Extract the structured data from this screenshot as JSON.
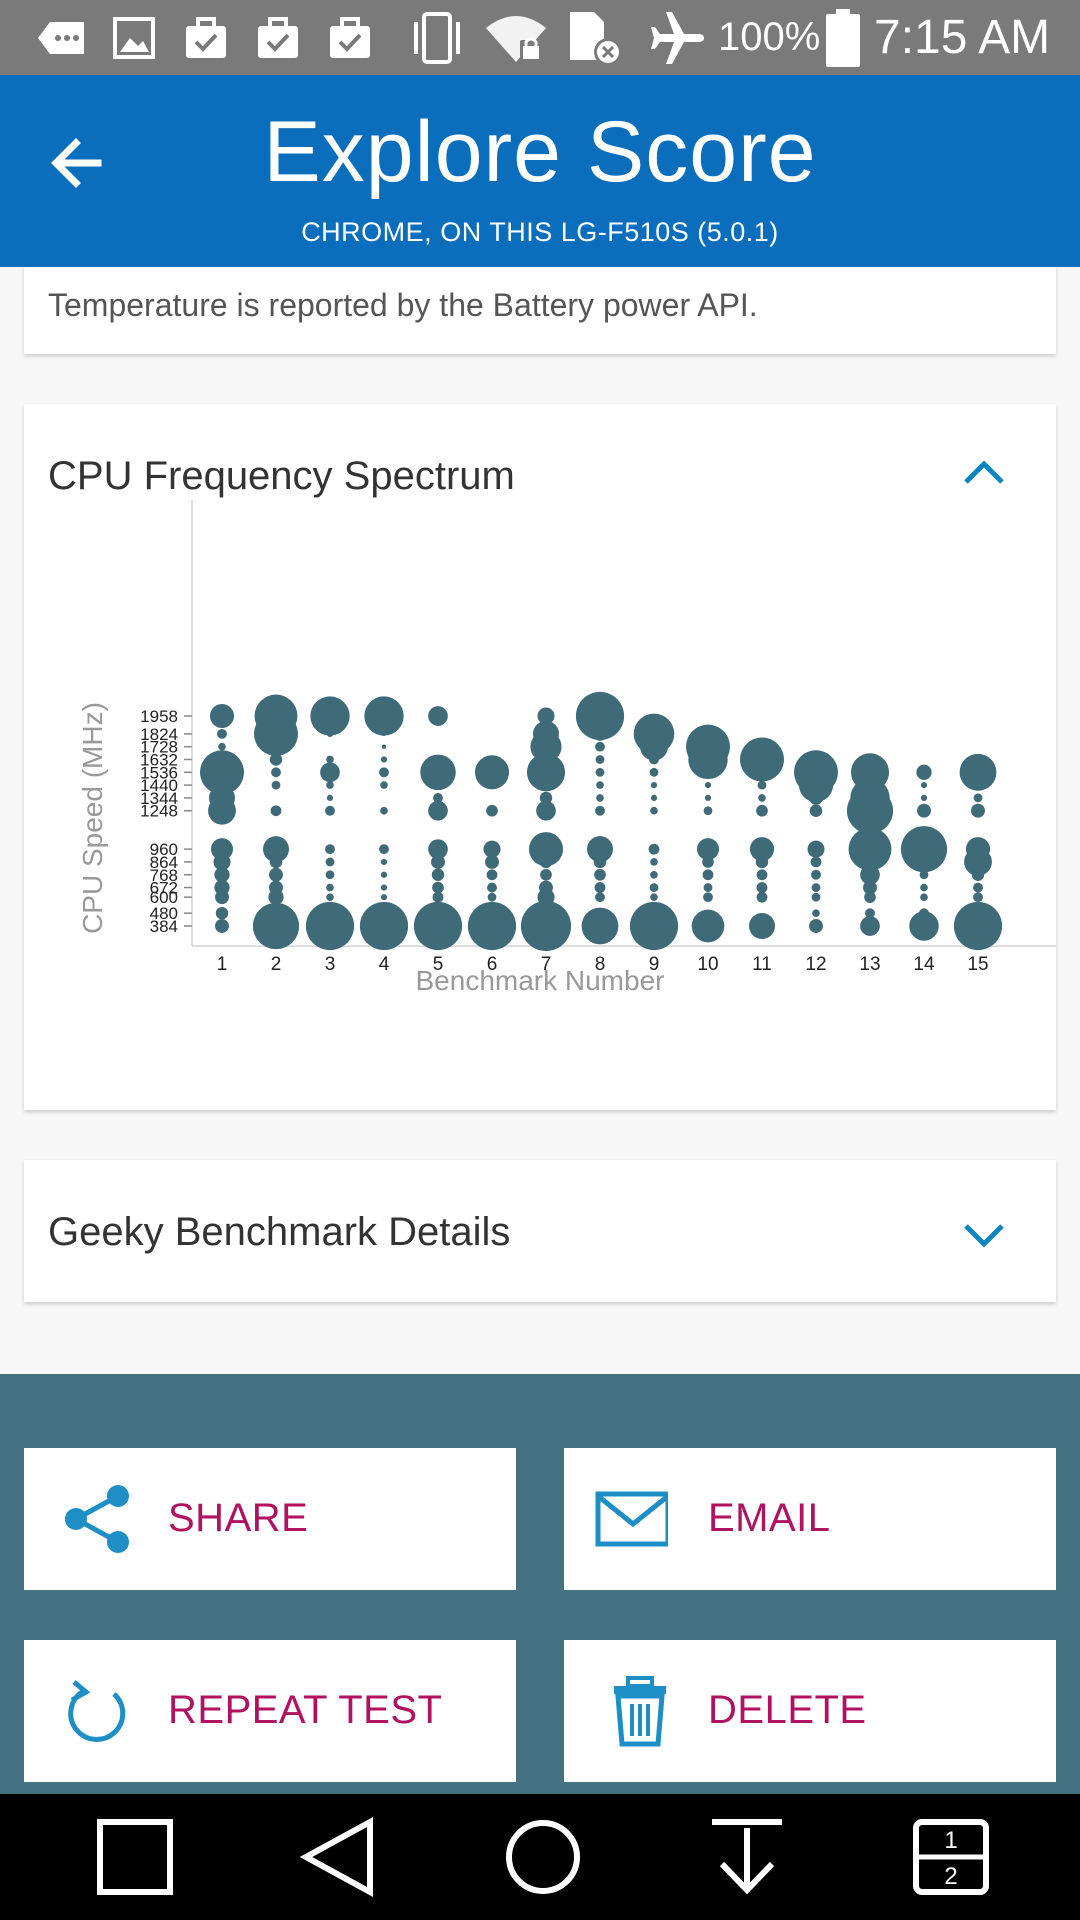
{
  "status_bar": {
    "battery_percent": "100%",
    "time": "7:15 AM",
    "icons": [
      "notification-icon",
      "image-icon",
      "briefcase-icon",
      "briefcase-icon",
      "briefcase-icon",
      "vibrate-icon",
      "wifi-lock-icon",
      "no-sim-icon",
      "airplane-icon",
      "battery-icon"
    ]
  },
  "app_bar": {
    "title": "Explore Score",
    "subtitle": "CHROME, ON THIS LG-F510S (5.0.1)",
    "back_icon": "arrow-back-icon"
  },
  "temperature_card": {
    "note": "Temperature is reported by the Battery power API."
  },
  "cpu_card": {
    "title": "CPU Frequency Spectrum",
    "toggle_icon": "chevron-up-icon"
  },
  "geeky_card": {
    "title": "Geeky Benchmark Details",
    "toggle_icon": "chevron-down-icon"
  },
  "actions": {
    "share": "SHARE",
    "email": "EMAIL",
    "repeat": "REPEAT TEST",
    "delete": "DELETE"
  },
  "colors": {
    "app_bar": "#0a6ebd",
    "status_bar": "#7a7a7a",
    "bubble": "#3f6b78",
    "action_area": "#447283",
    "action_label": "#b0125f",
    "action_icon": "#1e8fc6",
    "chevron": "#0a85c2"
  },
  "chart_data": {
    "type": "scatter",
    "subtype": "bubble",
    "xlabel": "Benchmark Number",
    "ylabel": "CPU Speed (MHz)",
    "x_ticks": [
      1,
      2,
      3,
      4,
      5,
      6,
      7,
      8,
      9,
      10,
      11,
      12,
      13,
      14,
      15
    ],
    "y_ticks": [
      384,
      480,
      600,
      672,
      768,
      864,
      960,
      1248,
      1344,
      1440,
      1536,
      1632,
      1728,
      1824,
      1958
    ],
    "y_tick_labels": [
      "384",
      "480",
      "600",
      "672",
      "768",
      "864",
      "960",
      "1248",
      "1344",
      "1440",
      "1536",
      "1632",
      "1728",
      "1824",
      "1958"
    ],
    "y_tick_labels_overlapped_note": "",
    "note_size": "bubble size = relative share of time at that frequency (0-1)",
    "points": [
      {
        "x": 1,
        "y": 1958,
        "s": 0.3
      },
      {
        "x": 1,
        "y": 1824,
        "s": 0.05
      },
      {
        "x": 1,
        "y": 1728,
        "s": 0.03
      },
      {
        "x": 1,
        "y": 1536,
        "s": 1.0
      },
      {
        "x": 1,
        "y": 1344,
        "s": 0.35
      },
      {
        "x": 1,
        "y": 1248,
        "s": 0.4
      },
      {
        "x": 1,
        "y": 960,
        "s": 0.25
      },
      {
        "x": 1,
        "y": 864,
        "s": 0.15
      },
      {
        "x": 1,
        "y": 768,
        "s": 0.12
      },
      {
        "x": 1,
        "y": 672,
        "s": 0.12
      },
      {
        "x": 1,
        "y": 600,
        "s": 0.1
      },
      {
        "x": 1,
        "y": 480,
        "s": 0.08
      },
      {
        "x": 1,
        "y": 384,
        "s": 0.1
      },
      {
        "x": 2,
        "y": 1958,
        "s": 0.95
      },
      {
        "x": 2,
        "y": 1824,
        "s": 1.0
      },
      {
        "x": 2,
        "y": 1728,
        "s": 0.15
      },
      {
        "x": 2,
        "y": 1632,
        "s": 0.08
      },
      {
        "x": 2,
        "y": 1536,
        "s": 0.05
      },
      {
        "x": 2,
        "y": 1440,
        "s": 0.04
      },
      {
        "x": 2,
        "y": 1248,
        "s": 0.06
      },
      {
        "x": 2,
        "y": 960,
        "s": 0.35
      },
      {
        "x": 2,
        "y": 864,
        "s": 0.08
      },
      {
        "x": 2,
        "y": 768,
        "s": 0.1
      },
      {
        "x": 2,
        "y": 672,
        "s": 0.1
      },
      {
        "x": 2,
        "y": 600,
        "s": 0.12
      },
      {
        "x": 2,
        "y": 384,
        "s": 1.1
      },
      {
        "x": 3,
        "y": 1958,
        "s": 0.8
      },
      {
        "x": 3,
        "y": 1824,
        "s": 0.02
      },
      {
        "x": 3,
        "y": 1632,
        "s": 0.03
      },
      {
        "x": 3,
        "y": 1536,
        "s": 0.2
      },
      {
        "x": 3,
        "y": 1440,
        "s": 0.03
      },
      {
        "x": 3,
        "y": 1344,
        "s": 0.02
      },
      {
        "x": 3,
        "y": 1248,
        "s": 0.05
      },
      {
        "x": 3,
        "y": 960,
        "s": 0.05
      },
      {
        "x": 3,
        "y": 864,
        "s": 0.04
      },
      {
        "x": 3,
        "y": 768,
        "s": 0.04
      },
      {
        "x": 3,
        "y": 672,
        "s": 0.03
      },
      {
        "x": 3,
        "y": 600,
        "s": 0.03
      },
      {
        "x": 3,
        "y": 384,
        "s": 1.2
      },
      {
        "x": 4,
        "y": 1958,
        "s": 0.8
      },
      {
        "x": 4,
        "y": 1824,
        "s": 0.01
      },
      {
        "x": 4,
        "y": 1728,
        "s": 0.01
      },
      {
        "x": 4,
        "y": 1632,
        "s": 0.02
      },
      {
        "x": 4,
        "y": 1536,
        "s": 0.05
      },
      {
        "x": 4,
        "y": 1440,
        "s": 0.03
      },
      {
        "x": 4,
        "y": 1248,
        "s": 0.03
      },
      {
        "x": 4,
        "y": 960,
        "s": 0.05
      },
      {
        "x": 4,
        "y": 864,
        "s": 0.02
      },
      {
        "x": 4,
        "y": 768,
        "s": 0.02
      },
      {
        "x": 4,
        "y": 672,
        "s": 0.02
      },
      {
        "x": 4,
        "y": 600,
        "s": 0.02
      },
      {
        "x": 4,
        "y": 384,
        "s": 1.2
      },
      {
        "x": 5,
        "y": 1958,
        "s": 0.2
      },
      {
        "x": 5,
        "y": 1536,
        "s": 0.65
      },
      {
        "x": 5,
        "y": 1440,
        "s": 0.05
      },
      {
        "x": 5,
        "y": 1344,
        "s": 0.05
      },
      {
        "x": 5,
        "y": 1248,
        "s": 0.2
      },
      {
        "x": 5,
        "y": 960,
        "s": 0.2
      },
      {
        "x": 5,
        "y": 864,
        "s": 0.1
      },
      {
        "x": 5,
        "y": 768,
        "s": 0.08
      },
      {
        "x": 5,
        "y": 672,
        "s": 0.07
      },
      {
        "x": 5,
        "y": 600,
        "s": 0.06
      },
      {
        "x": 5,
        "y": 384,
        "s": 1.2
      },
      {
        "x": 6,
        "y": 1632,
        "s": 0.02
      },
      {
        "x": 6,
        "y": 1536,
        "s": 0.6
      },
      {
        "x": 6,
        "y": 1440,
        "s": 0.02
      },
      {
        "x": 6,
        "y": 1248,
        "s": 0.07
      },
      {
        "x": 6,
        "y": 960,
        "s": 0.15
      },
      {
        "x": 6,
        "y": 864,
        "s": 0.1
      },
      {
        "x": 6,
        "y": 768,
        "s": 0.06
      },
      {
        "x": 6,
        "y": 672,
        "s": 0.05
      },
      {
        "x": 6,
        "y": 600,
        "s": 0.04
      },
      {
        "x": 6,
        "y": 384,
        "s": 1.2
      },
      {
        "x": 7,
        "y": 1958,
        "s": 0.15
      },
      {
        "x": 7,
        "y": 1824,
        "s": 0.35
      },
      {
        "x": 7,
        "y": 1728,
        "s": 0.5
      },
      {
        "x": 7,
        "y": 1536,
        "s": 0.75
      },
      {
        "x": 7,
        "y": 1440,
        "s": 0.05
      },
      {
        "x": 7,
        "y": 1344,
        "s": 0.08
      },
      {
        "x": 7,
        "y": 1248,
        "s": 0.2
      },
      {
        "x": 7,
        "y": 960,
        "s": 0.6
      },
      {
        "x": 7,
        "y": 864,
        "s": 0.08
      },
      {
        "x": 7,
        "y": 768,
        "s": 0.07
      },
      {
        "x": 7,
        "y": 672,
        "s": 0.1
      },
      {
        "x": 7,
        "y": 600,
        "s": 0.15
      },
      {
        "x": 7,
        "y": 384,
        "s": 1.3
      },
      {
        "x": 8,
        "y": 1958,
        "s": 1.2
      },
      {
        "x": 8,
        "y": 1824,
        "s": 0.1
      },
      {
        "x": 8,
        "y": 1728,
        "s": 0.05
      },
      {
        "x": 8,
        "y": 1632,
        "s": 0.04
      },
      {
        "x": 8,
        "y": 1536,
        "s": 0.04
      },
      {
        "x": 8,
        "y": 1440,
        "s": 0.03
      },
      {
        "x": 8,
        "y": 1344,
        "s": 0.03
      },
      {
        "x": 8,
        "y": 1248,
        "s": 0.05
      },
      {
        "x": 8,
        "y": 960,
        "s": 0.35
      },
      {
        "x": 8,
        "y": 864,
        "s": 0.08
      },
      {
        "x": 8,
        "y": 768,
        "s": 0.07
      },
      {
        "x": 8,
        "y": 672,
        "s": 0.06
      },
      {
        "x": 8,
        "y": 600,
        "s": 0.05
      },
      {
        "x": 8,
        "y": 384,
        "s": 0.7
      },
      {
        "x": 9,
        "y": 1824,
        "s": 0.85
      },
      {
        "x": 9,
        "y": 1728,
        "s": 0.4
      },
      {
        "x": 9,
        "y": 1632,
        "s": 0.05
      },
      {
        "x": 9,
        "y": 1536,
        "s": 0.04
      },
      {
        "x": 9,
        "y": 1440,
        "s": 0.02
      },
      {
        "x": 9,
        "y": 1344,
        "s": 0.02
      },
      {
        "x": 9,
        "y": 1248,
        "s": 0.03
      },
      {
        "x": 9,
        "y": 960,
        "s": 0.06
      },
      {
        "x": 9,
        "y": 864,
        "s": 0.03
      },
      {
        "x": 9,
        "y": 768,
        "s": 0.03
      },
      {
        "x": 9,
        "y": 672,
        "s": 0.04
      },
      {
        "x": 9,
        "y": 600,
        "s": 0.03
      },
      {
        "x": 9,
        "y": 384,
        "s": 1.2
      },
      {
        "x": 10,
        "y": 1728,
        "s": 1.0
      },
      {
        "x": 10,
        "y": 1632,
        "s": 0.8
      },
      {
        "x": 10,
        "y": 1536,
        "s": 0.04
      },
      {
        "x": 10,
        "y": 1440,
        "s": 0.02
      },
      {
        "x": 10,
        "y": 1344,
        "s": 0.02
      },
      {
        "x": 10,
        "y": 1248,
        "s": 0.04
      },
      {
        "x": 10,
        "y": 960,
        "s": 0.25
      },
      {
        "x": 10,
        "y": 864,
        "s": 0.07
      },
      {
        "x": 10,
        "y": 768,
        "s": 0.06
      },
      {
        "x": 10,
        "y": 672,
        "s": 0.04
      },
      {
        "x": 10,
        "y": 600,
        "s": 0.05
      },
      {
        "x": 10,
        "y": 384,
        "s": 0.55
      },
      {
        "x": 11,
        "y": 1632,
        "s": 1.0
      },
      {
        "x": 11,
        "y": 1536,
        "s": 0.04
      },
      {
        "x": 11,
        "y": 1440,
        "s": 0.04
      },
      {
        "x": 11,
        "y": 1344,
        "s": 0.03
      },
      {
        "x": 11,
        "y": 1248,
        "s": 0.07
      },
      {
        "x": 11,
        "y": 960,
        "s": 0.3
      },
      {
        "x": 11,
        "y": 864,
        "s": 0.08
      },
      {
        "x": 11,
        "y": 768,
        "s": 0.06
      },
      {
        "x": 11,
        "y": 672,
        "s": 0.06
      },
      {
        "x": 11,
        "y": 600,
        "s": 0.06
      },
      {
        "x": 11,
        "y": 384,
        "s": 0.35
      },
      {
        "x": 12,
        "y": 1536,
        "s": 1.0
      },
      {
        "x": 12,
        "y": 1440,
        "s": 0.6
      },
      {
        "x": 12,
        "y": 1344,
        "s": 0.1
      },
      {
        "x": 12,
        "y": 1248,
        "s": 0.08
      },
      {
        "x": 12,
        "y": 960,
        "s": 0.15
      },
      {
        "x": 12,
        "y": 864,
        "s": 0.06
      },
      {
        "x": 12,
        "y": 768,
        "s": 0.05
      },
      {
        "x": 12,
        "y": 672,
        "s": 0.04
      },
      {
        "x": 12,
        "y": 600,
        "s": 0.04
      },
      {
        "x": 12,
        "y": 480,
        "s": 0.03
      },
      {
        "x": 12,
        "y": 384,
        "s": 0.1
      },
      {
        "x": 13,
        "y": 1536,
        "s": 0.75
      },
      {
        "x": 13,
        "y": 1344,
        "s": 0.8
      },
      {
        "x": 13,
        "y": 1248,
        "s": 1.1
      },
      {
        "x": 13,
        "y": 960,
        "s": 0.95
      },
      {
        "x": 13,
        "y": 864,
        "s": 0.12
      },
      {
        "x": 13,
        "y": 768,
        "s": 0.2
      },
      {
        "x": 13,
        "y": 672,
        "s": 0.1
      },
      {
        "x": 13,
        "y": 600,
        "s": 0.07
      },
      {
        "x": 13,
        "y": 480,
        "s": 0.05
      },
      {
        "x": 13,
        "y": 384,
        "s": 0.2
      },
      {
        "x": 14,
        "y": 1536,
        "s": 0.12
      },
      {
        "x": 14,
        "y": 1440,
        "s": 0.02
      },
      {
        "x": 14,
        "y": 1344,
        "s": 0.02
      },
      {
        "x": 14,
        "y": 1248,
        "s": 0.1
      },
      {
        "x": 14,
        "y": 960,
        "s": 1.1
      },
      {
        "x": 14,
        "y": 864,
        "s": 0.04
      },
      {
        "x": 14,
        "y": 768,
        "s": 0.04
      },
      {
        "x": 14,
        "y": 672,
        "s": 0.03
      },
      {
        "x": 14,
        "y": 600,
        "s": 0.03
      },
      {
        "x": 14,
        "y": 480,
        "s": 0.05
      },
      {
        "x": 14,
        "y": 384,
        "s": 0.45
      },
      {
        "x": 15,
        "y": 1536,
        "s": 0.7
      },
      {
        "x": 15,
        "y": 1344,
        "s": 0.04
      },
      {
        "x": 15,
        "y": 1248,
        "s": 0.1
      },
      {
        "x": 15,
        "y": 960,
        "s": 0.3
      },
      {
        "x": 15,
        "y": 864,
        "s": 0.4
      },
      {
        "x": 15,
        "y": 768,
        "s": 0.08
      },
      {
        "x": 15,
        "y": 672,
        "s": 0.05
      },
      {
        "x": 15,
        "y": 600,
        "s": 0.05
      },
      {
        "x": 15,
        "y": 384,
        "s": 1.2
      }
    ]
  },
  "nav_bar": {
    "icons": [
      "recents-icon",
      "back-icon",
      "home-icon",
      "download-icon",
      "dual-window-icon"
    ]
  }
}
